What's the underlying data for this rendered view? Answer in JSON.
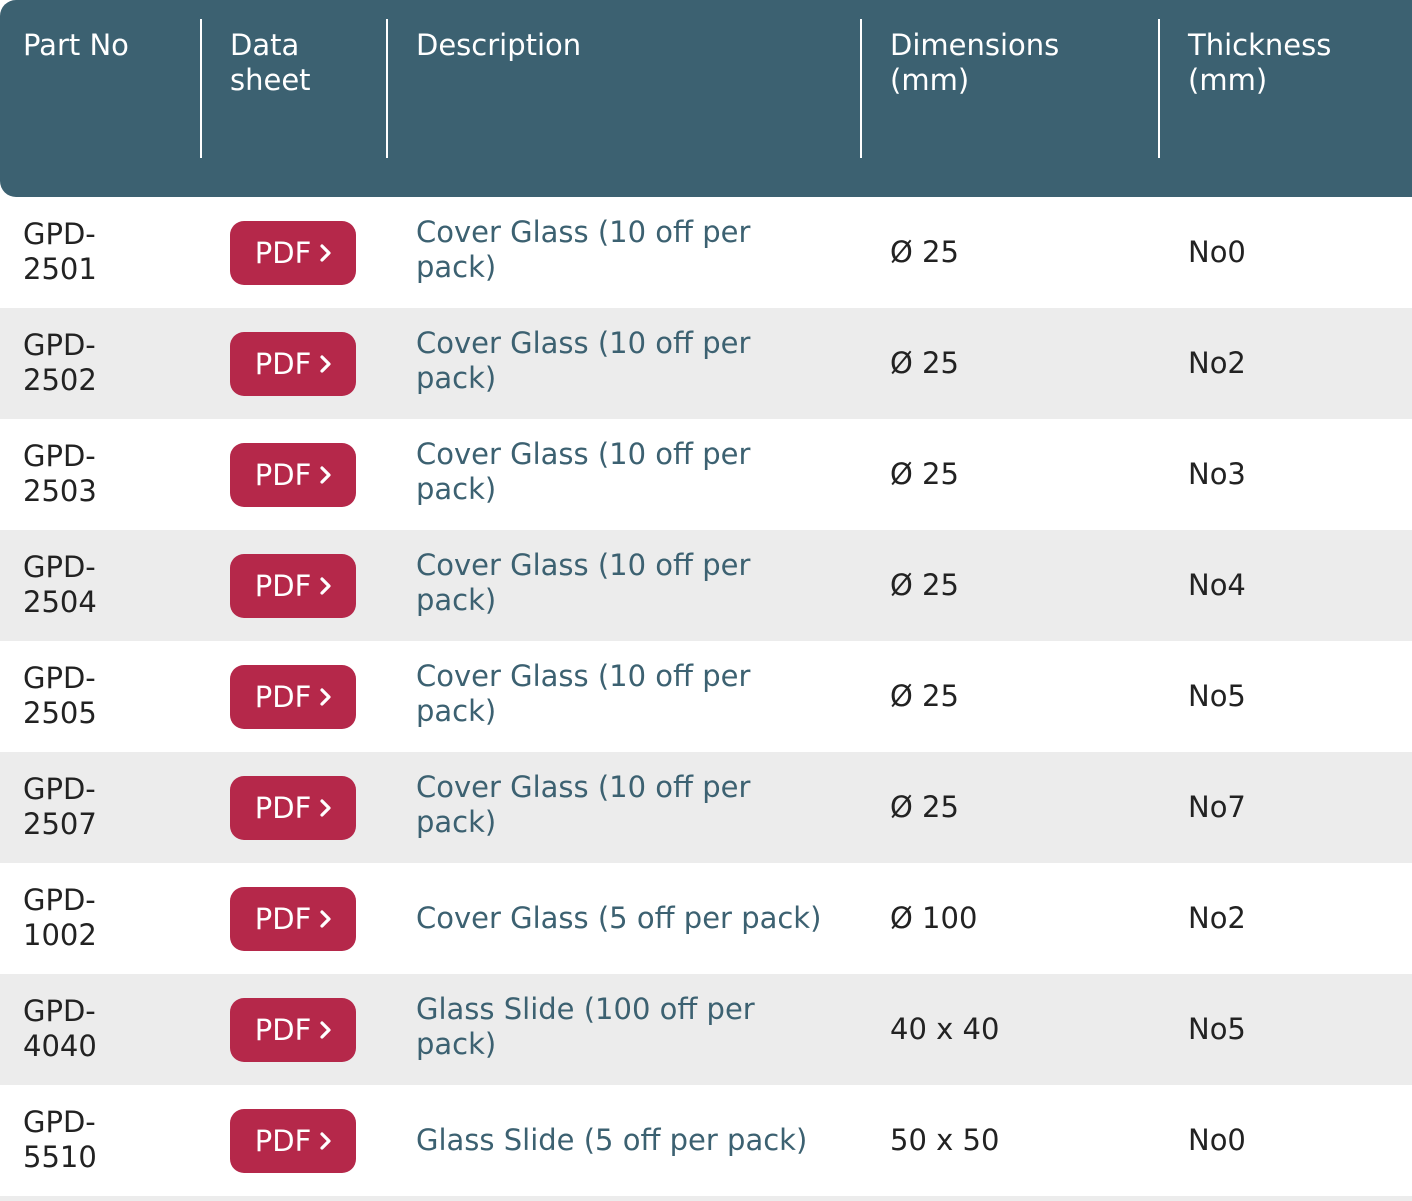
{
  "header": {
    "part_no": "Part No",
    "data_sheet_1": "Data",
    "data_sheet_2": "sheet",
    "description": "Description",
    "dimensions_1": "Dimensions",
    "dimensions_2": "(mm)",
    "thickness_1": "Thickness",
    "thickness_2": "(mm)"
  },
  "pdf_label": "PDF",
  "colors": {
    "header_bg": "#3c6171",
    "button_bg": "#b5284a",
    "alt_row_bg": "#ececec",
    "desc_text": "#3c6171"
  },
  "rows": [
    {
      "part_1": "GPD-",
      "part_2": "2501",
      "desc_1": "Cover Glass (10 off per",
      "desc_2": "pack)",
      "dimensions": "Ø 25",
      "thickness": "No0"
    },
    {
      "part_1": "GPD-",
      "part_2": "2502",
      "desc_1": "Cover Glass (10 off per",
      "desc_2": "pack)",
      "dimensions": "Ø 25",
      "thickness": "No2"
    },
    {
      "part_1": "GPD-",
      "part_2": "2503",
      "desc_1": "Cover Glass (10 off per",
      "desc_2": "pack)",
      "dimensions": "Ø 25",
      "thickness": "No3"
    },
    {
      "part_1": "GPD-",
      "part_2": "2504",
      "desc_1": "Cover Glass (10 off per",
      "desc_2": "pack)",
      "dimensions": "Ø 25",
      "thickness": "No4"
    },
    {
      "part_1": "GPD-",
      "part_2": "2505",
      "desc_1": "Cover Glass (10 off per",
      "desc_2": "pack)",
      "dimensions": "Ø 25",
      "thickness": "No5"
    },
    {
      "part_1": "GPD-",
      "part_2": "2507",
      "desc_1": "Cover Glass (10 off per",
      "desc_2": "pack)",
      "dimensions": "Ø 25",
      "thickness": "No7"
    },
    {
      "part_1": "GPD-",
      "part_2": "1002",
      "desc_1": "Cover Glass (5 off per pack)",
      "desc_2": "",
      "dimensions": "Ø 100",
      "thickness": "No2"
    },
    {
      "part_1": "GPD-",
      "part_2": "4040",
      "desc_1": "Glass Slide (100 off per",
      "desc_2": "pack)",
      "dimensions": "40 x 40",
      "thickness": "No5"
    },
    {
      "part_1": "GPD-",
      "part_2": "5510",
      "desc_1": "Glass Slide (5 off per pack)",
      "desc_2": "",
      "dimensions": "50 x 50",
      "thickness": "No0"
    }
  ]
}
